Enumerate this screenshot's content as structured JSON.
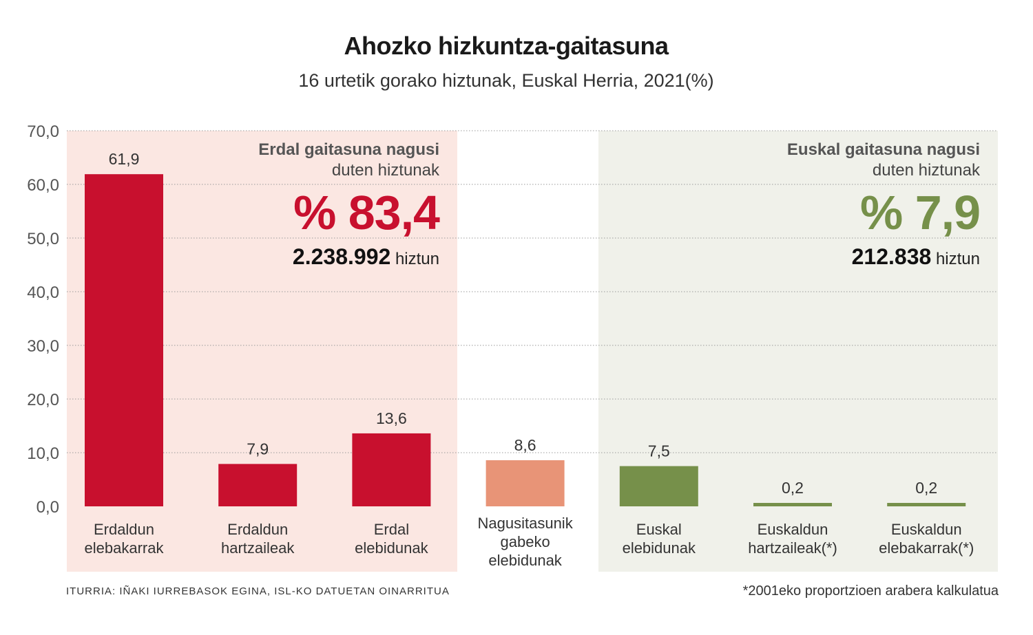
{
  "title": "Ahozko hizkuntza-gaitasuna",
  "subtitle": "16 urtetik gorako hiztunak, Euskal Herria, 2021(%)",
  "panels": {
    "erdal": {
      "heading": "Erdal gaitasuna nagusi",
      "subheading": "duten hiztunak",
      "percent": "% 83,4",
      "count": "2.238.992",
      "count_unit": "hiztun",
      "background": "#fbe7e2",
      "accent": "#c8102e"
    },
    "euskal": {
      "heading": "Euskal gaitasuna nagusi",
      "subheading": "duten hiztunak",
      "percent": "% 7,9",
      "count": "212.838",
      "count_unit": "hiztun",
      "background": "#f0f1ea",
      "accent": "#76904a"
    }
  },
  "chart_data": {
    "type": "bar",
    "categories": [
      [
        "Erdaldun",
        "elebakarrak"
      ],
      [
        "Erdaldun",
        "hartzaileak"
      ],
      [
        "Erdal",
        "elebidunak"
      ],
      [
        "Nagusitasunik",
        "gabeko",
        "elebidunak"
      ],
      [
        "Euskal",
        "elebidunak"
      ],
      [
        "Euskaldun",
        "hartzaileak(*)"
      ],
      [
        "Euskaldun",
        "elebakarrak(*)"
      ]
    ],
    "values": [
      61.9,
      7.9,
      13.6,
      8.6,
      7.5,
      0.2,
      0.2
    ],
    "value_labels": [
      "61,9",
      "7,9",
      "13,6",
      "8,6",
      "7,5",
      "0,2",
      "0,2"
    ],
    "colors": [
      "#c8102e",
      "#c8102e",
      "#c8102e",
      "#e89477",
      "#76904a",
      "#76904a",
      "#76904a"
    ],
    "ylim": [
      0,
      70
    ],
    "yticks": [
      "0,0",
      "10,0",
      "20,0",
      "30,0",
      "40,0",
      "50,0",
      "60,0",
      "70,0"
    ],
    "grid": true
  },
  "footer": {
    "source": "ITURRIA: IÑAKI IURREBASOK EGINA, ISL-KO DATUETAN OINARRITUA",
    "note": "*2001eko proportzioen arabera kalkulatua"
  }
}
